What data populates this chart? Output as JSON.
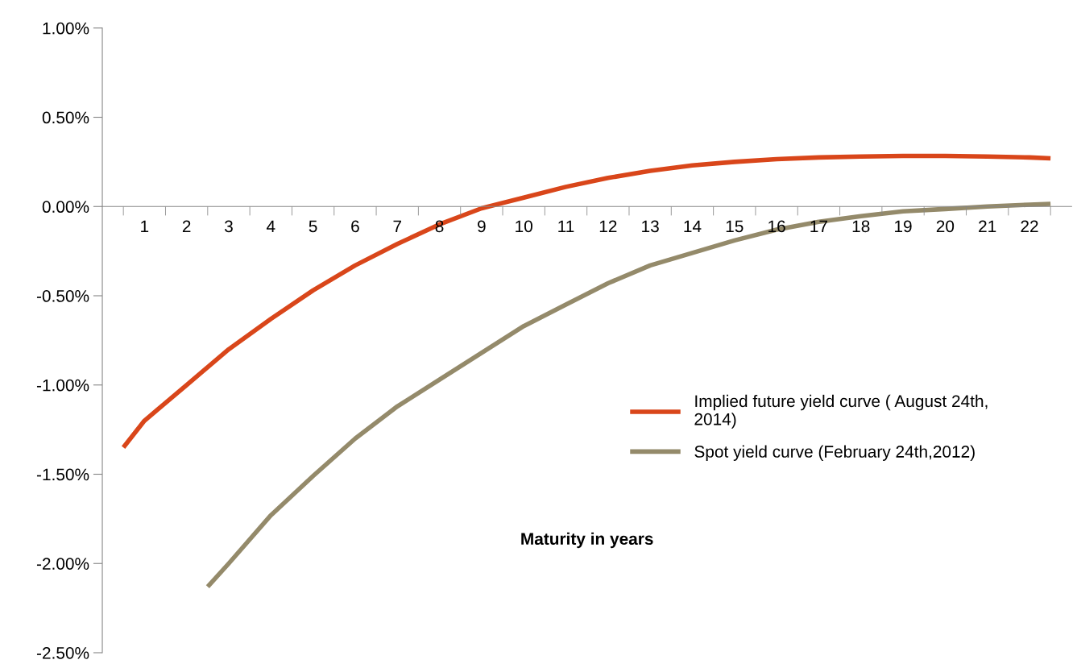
{
  "chart_data": {
    "type": "line",
    "xlabel": "Maturity in years",
    "xlim": [
      0,
      23
    ],
    "xticks": [
      {
        "value": 0.5,
        "label": null
      },
      1,
      {
        "value": 1.5,
        "label": null
      },
      2,
      {
        "value": 2.5,
        "label": null
      },
      3,
      {
        "value": 3.5,
        "label": null
      },
      4,
      {
        "value": 4.5,
        "label": null
      },
      5,
      {
        "value": 5.5,
        "label": null
      },
      6,
      {
        "value": 6.5,
        "label": null
      },
      7,
      {
        "value": 7.5,
        "label": null
      },
      8,
      {
        "value": 8.5,
        "label": null
      },
      9,
      {
        "value": 9.5,
        "label": null
      },
      10,
      {
        "value": 10.5,
        "label": null
      },
      11,
      {
        "value": 11.5,
        "label": null
      },
      12,
      {
        "value": 12.5,
        "label": null
      },
      13,
      {
        "value": 13.5,
        "label": null
      },
      14,
      {
        "value": 14.5,
        "label": null
      },
      15,
      {
        "value": 15.5,
        "label": null
      },
      16,
      {
        "value": 16.5,
        "label": null
      },
      17,
      {
        "value": 17.5,
        "label": null
      },
      18,
      {
        "value": 18.5,
        "label": null
      },
      19,
      {
        "value": 19.5,
        "label": null
      },
      20,
      {
        "value": 20.5,
        "label": null
      },
      21,
      {
        "value": 21.5,
        "label": null
      },
      22,
      {
        "value": 22.5,
        "label": null
      }
    ],
    "ylim": [
      -2.5,
      1.0
    ],
    "yticks": [
      {
        "value": -2.5,
        "label": "-2.50%"
      },
      {
        "value": -2.0,
        "label": "-2.00%"
      },
      {
        "value": -1.5,
        "label": "-1.50%"
      },
      {
        "value": -1.0,
        "label": "-1.00%"
      },
      {
        "value": -0.5,
        "label": "-0.50%"
      },
      {
        "value": 0,
        "label": "0.00%"
      },
      {
        "value": 0.5,
        "label": "0.50%"
      },
      {
        "value": 1.0,
        "label": "1.00%"
      }
    ],
    "grid": false,
    "legend": "center right",
    "marker": "none",
    "line_style": "solid",
    "series": [
      {
        "name": "Implied future yield curve ( August 24th,\n2014)",
        "color": "#d9461a",
        "x": [
          0.5,
          1,
          2,
          3,
          4,
          5,
          6,
          7,
          8,
          9,
          10,
          11,
          12,
          13,
          14,
          15,
          16,
          17,
          18,
          19,
          20,
          21,
          22,
          22.5
        ],
        "values": [
          -1.35,
          -1.2,
          -1.0,
          -0.8,
          -0.63,
          -0.47,
          -0.33,
          -0.21,
          -0.1,
          -0.01,
          0.05,
          0.11,
          0.16,
          0.2,
          0.23,
          0.25,
          0.265,
          0.275,
          0.28,
          0.283,
          0.283,
          0.28,
          0.275,
          0.27
        ]
      },
      {
        "name": "Spot yield curve (February 24th,2012)",
        "color": "#948a6a",
        "x": [
          2.5,
          3,
          4,
          5,
          6,
          7,
          8,
          9,
          10,
          11,
          12,
          13,
          14,
          15,
          16,
          17,
          18,
          19,
          20,
          21,
          22,
          22.5
        ],
        "values": [
          -2.13,
          -2.0,
          -1.73,
          -1.51,
          -1.3,
          -1.12,
          -0.97,
          -0.82,
          -0.67,
          -0.55,
          -0.43,
          -0.33,
          -0.26,
          -0.19,
          -0.13,
          -0.086,
          -0.054,
          -0.027,
          -0.014,
          0.0,
          0.01,
          0.015
        ]
      }
    ]
  }
}
